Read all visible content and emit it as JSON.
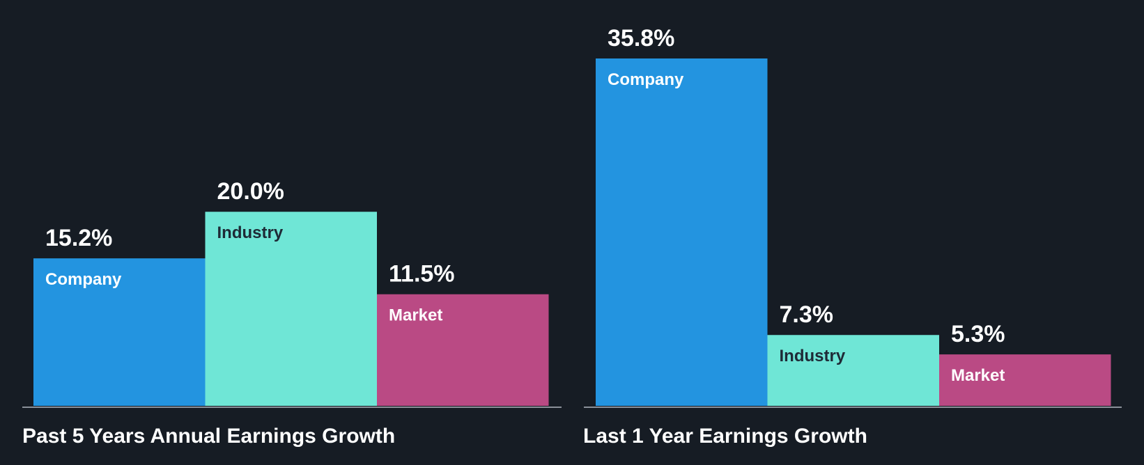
{
  "chart_data": [
    {
      "type": "bar",
      "title": "Past 5 Years Annual Earnings Growth",
      "categories": [
        "Company",
        "Industry",
        "Market"
      ],
      "values": [
        15.2,
        20.0,
        11.5
      ],
      "value_labels": [
        "15.2%",
        "20.0%",
        "11.5%"
      ],
      "unit": "%",
      "ylim": [
        0,
        35.8
      ]
    },
    {
      "type": "bar",
      "title": "Last 1 Year Earnings Growth",
      "categories": [
        "Company",
        "Industry",
        "Market"
      ],
      "values": [
        35.8,
        7.3,
        5.3
      ],
      "value_labels": [
        "35.8%",
        "7.3%",
        "5.3%"
      ],
      "unit": "%",
      "ylim": [
        0,
        35.8
      ]
    }
  ],
  "colors": {
    "background": "#161c24",
    "Company": "#2394e0",
    "Industry": "#6fe6d6",
    "Market": "#ba4a84",
    "label_on_Company": "#ffffff",
    "label_on_Industry": "#1e2a36",
    "label_on_Market": "#ffffff",
    "axis": "#8a9099"
  }
}
